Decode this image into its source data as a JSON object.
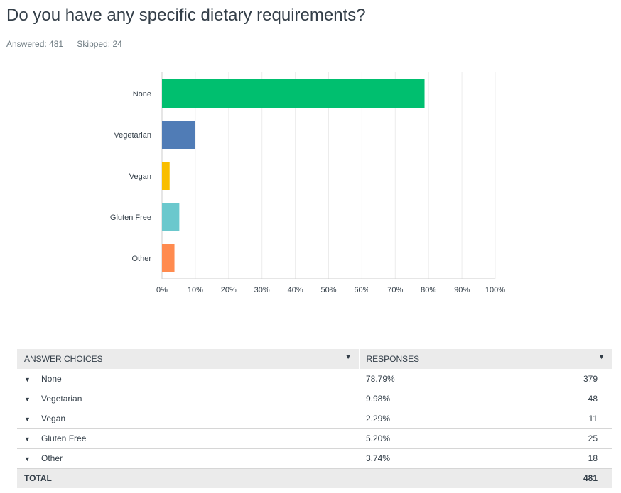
{
  "question": {
    "title": "Do you have any specific dietary requirements?",
    "answered": "Answered: 481",
    "skipped": "Skipped: 24"
  },
  "chart_data": {
    "type": "bar",
    "orientation": "horizontal",
    "categories": [
      "None",
      "Vegetarian",
      "Vegan",
      "Gluten Free",
      "Other"
    ],
    "values": [
      78.79,
      9.98,
      2.29,
      5.2,
      3.74
    ],
    "colors": [
      "#00bf6f",
      "#507cb6",
      "#f9be00",
      "#6bc8cd",
      "#ff8b4f"
    ],
    "x_ticks": [
      "0%",
      "10%",
      "20%",
      "30%",
      "40%",
      "50%",
      "60%",
      "70%",
      "80%",
      "90%",
      "100%"
    ],
    "xlim": [
      0,
      100
    ],
    "grid": true
  },
  "table": {
    "header_choice": "Answer Choices",
    "header_responses": "Responses",
    "rows": [
      {
        "choice": "None",
        "percent": "78.79%",
        "count": "379"
      },
      {
        "choice": "Vegetarian",
        "percent": "9.98%",
        "count": "48"
      },
      {
        "choice": "Vegan",
        "percent": "2.29%",
        "count": "11"
      },
      {
        "choice": "Gluten Free",
        "percent": "5.20%",
        "count": "25"
      },
      {
        "choice": "Other",
        "percent": "3.74%",
        "count": "18"
      }
    ],
    "total_label": "Total",
    "total_count": "481"
  },
  "icons": {
    "sort": "caret-down-icon",
    "row_expand": "caret-down-icon"
  }
}
